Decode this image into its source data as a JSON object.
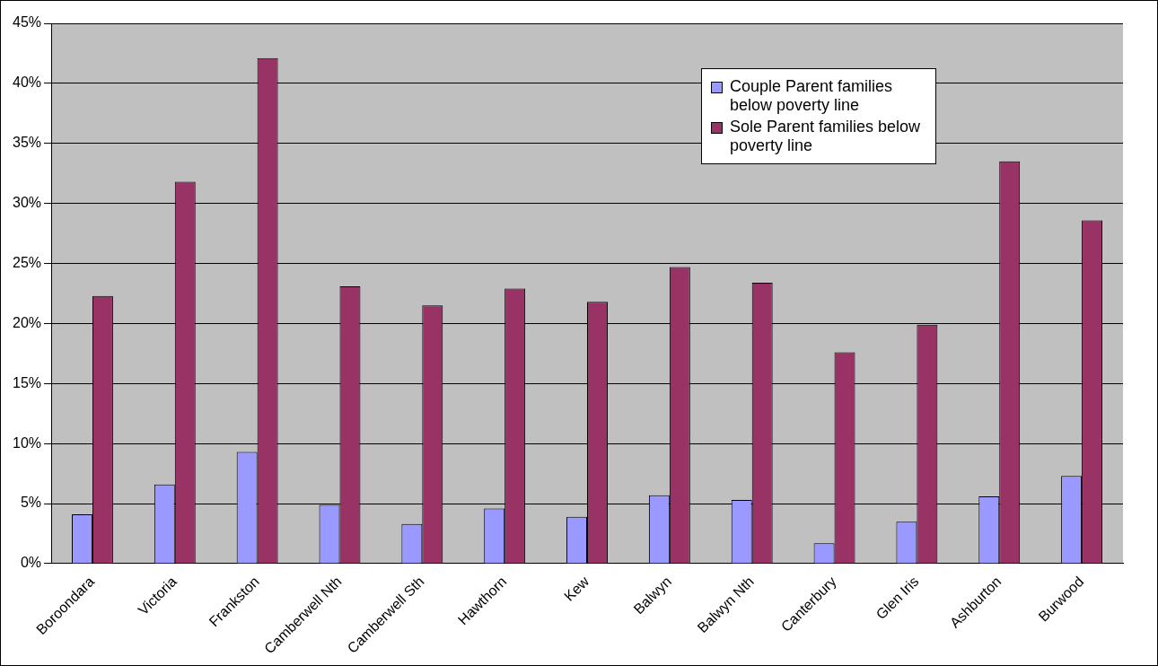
{
  "chart_data": {
    "type": "bar",
    "categories": [
      "Boroondara",
      "Victoria",
      "Frankston",
      "Camberwell Nth",
      "Camberwell Sth",
      "Hawthorn",
      "Kew",
      "Balwyn",
      "Balwyn Nth",
      "Canterbury",
      "Glen Iris",
      "Ashburton",
      "Burwood"
    ],
    "series": [
      {
        "name": "Couple Parent families below poverty line",
        "color": "#9999ff",
        "values": [
          4.1,
          6.6,
          9.3,
          4.9,
          3.3,
          4.6,
          3.9,
          5.7,
          5.3,
          1.7,
          3.5,
          5.6,
          7.3
        ]
      },
      {
        "name": "Sole Parent families below poverty line",
        "color": "#993366",
        "values": [
          22.3,
          31.8,
          42.1,
          23.1,
          21.5,
          22.9,
          21.8,
          24.7,
          23.4,
          17.6,
          19.9,
          33.5,
          28.6
        ]
      }
    ],
    "ylim": [
      0,
      45
    ],
    "yticks": [
      {
        "value": 0,
        "label": "0%"
      },
      {
        "value": 5,
        "label": "5%"
      },
      {
        "value": 10,
        "label": "10%"
      },
      {
        "value": 15,
        "label": "15%"
      },
      {
        "value": 20,
        "label": "20%"
      },
      {
        "value": 25,
        "label": "25%"
      },
      {
        "value": 30,
        "label": "30%"
      },
      {
        "value": 35,
        "label": "35%"
      },
      {
        "value": 40,
        "label": "40%"
      },
      {
        "value": 45,
        "label": "45%"
      }
    ],
    "grid": "y",
    "legend": "top right"
  }
}
